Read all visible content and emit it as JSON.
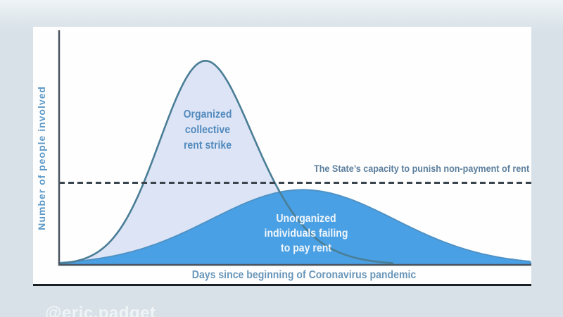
{
  "watermark": "@eric.padget",
  "colors": {
    "page_bg_top": "#eef3f6",
    "page_bg": "#d7e1e7",
    "panel_bg": "#fefefe",
    "panel_bottom_border": "#1a2025",
    "axis": "#49545e",
    "threshold": "#3b454e",
    "organized_fill": "#dde4f5",
    "organized_stroke": "#4a7e96",
    "unorganized_fill": "#4aa0e5",
    "unorganized_stroke": "#4e92c6",
    "label_organized": "#528abd",
    "label_unorganized": "#f0f6fa",
    "label_threshold": "#5c7f9d",
    "label_x_axis": "#6896ba",
    "label_y_axis": "#5e9ac8",
    "watermark": "#f4f8fa"
  },
  "labels": {
    "y_axis": "Number of people involved",
    "x_axis": "Days since beginning of Coronavirus pandemic",
    "threshold": "The State’s capacity to punish non-payment of rent",
    "organized": "Organized\ncollective\nrent strike",
    "unorganized": "Unorganized\nindividuals failing\nto pay rent"
  },
  "chart_data": {
    "type": "area",
    "title": "",
    "xlabel": "Days since beginning of Coronavirus pandemic",
    "ylabel": "Number of people involved",
    "x_range": [
      0,
      100
    ],
    "y_range": [
      0,
      100
    ],
    "grid": false,
    "legend": "none (labels drawn inline on curves)",
    "series": [
      {
        "name": "Organized collective rent strike",
        "shape": "gaussian-right-skewed",
        "center": 31,
        "sigma": 9.7,
        "peak": 87,
        "skew": 0.08
      },
      {
        "name": "Unorganized individuals failing to pay rent",
        "shape": "gaussian",
        "center": 51.6,
        "sigma": 19.4,
        "peak": 32,
        "skew": 0
      }
    ],
    "threshold_line": {
      "label": "The State’s capacity to punish non-payment of rent",
      "value": 35,
      "style": "dashed"
    }
  }
}
